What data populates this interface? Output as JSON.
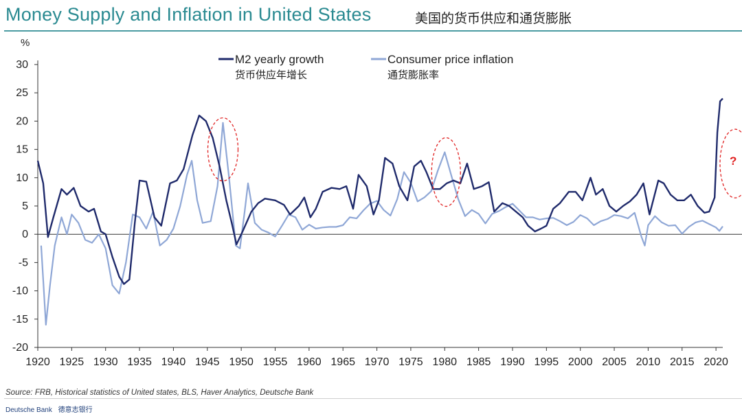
{
  "header": {
    "title": "Money Supply and Inflation in United States",
    "title_cn": "美国的货币供应和通货膨胀"
  },
  "footer": {
    "source": "Source: FRB, Historical statistics of United states,  BLS, Haver Analytics, Deutsche Bank",
    "brand": "Deutsche Bank",
    "brand_cn": "德意志银行"
  },
  "colors": {
    "title": "#2a8a91",
    "m2": "#1f2a6b",
    "cpi": "#8fa7d6",
    "highlight": "#e02020"
  },
  "annotation": {
    "text": "?"
  },
  "chart_data": {
    "type": "line",
    "ylabel": "%",
    "xlim": [
      1920,
      2021
    ],
    "ylim": [
      -20,
      30
    ],
    "yticks": [
      30,
      25,
      20,
      15,
      10,
      5,
      0,
      -5,
      -10,
      -15,
      -20
    ],
    "xticks": [
      1920,
      1925,
      1930,
      1935,
      1940,
      1945,
      1950,
      1955,
      1960,
      1965,
      1970,
      1975,
      1980,
      1985,
      1990,
      1995,
      2000,
      2005,
      2010,
      2015,
      2020
    ],
    "legend_position": "top-center",
    "series": [
      {
        "name": "M2 yearly growth",
        "name_cn": "货币供应年增长",
        "points": [
          [
            1920,
            13
          ],
          [
            1920.8,
            9
          ],
          [
            1921.5,
            -0.5
          ],
          [
            1922.3,
            3
          ],
          [
            1923.5,
            8
          ],
          [
            1924.3,
            7
          ],
          [
            1925.3,
            8.2
          ],
          [
            1926.3,
            5
          ],
          [
            1927.5,
            4
          ],
          [
            1928.3,
            4.5
          ],
          [
            1929.3,
            0.5
          ],
          [
            1930,
            0
          ],
          [
            1931,
            -4
          ],
          [
            1932,
            -7.5
          ],
          [
            1932.7,
            -8.8
          ],
          [
            1933.5,
            -8
          ],
          [
            1934.3,
            2
          ],
          [
            1935,
            9.5
          ],
          [
            1936,
            9.3
          ],
          [
            1937.2,
            3
          ],
          [
            1938.2,
            1.5
          ],
          [
            1939.5,
            9
          ],
          [
            1940.5,
            9.5
          ],
          [
            1941.5,
            11.5
          ],
          [
            1942.8,
            17.5
          ],
          [
            1943.8,
            21
          ],
          [
            1944.8,
            20
          ],
          [
            1945.8,
            17
          ],
          [
            1946.8,
            12
          ],
          [
            1947.8,
            6
          ],
          [
            1948.6,
            2
          ],
          [
            1949.3,
            -1.8
          ],
          [
            1950.2,
            0.5
          ],
          [
            1951.5,
            4
          ],
          [
            1952.5,
            5.5
          ],
          [
            1953.5,
            6.3
          ],
          [
            1955,
            6
          ],
          [
            1956.3,
            5.2
          ],
          [
            1957.2,
            3.5
          ],
          [
            1958.5,
            5
          ],
          [
            1959.3,
            6.5
          ],
          [
            1960.2,
            3
          ],
          [
            1961,
            4.5
          ],
          [
            1962,
            7.5
          ],
          [
            1963.3,
            8.2
          ],
          [
            1964.5,
            8
          ],
          [
            1965.5,
            8.5
          ],
          [
            1966.5,
            4.5
          ],
          [
            1967.3,
            10.5
          ],
          [
            1968.5,
            8.5
          ],
          [
            1969.5,
            3.5
          ],
          [
            1970.3,
            6
          ],
          [
            1971.2,
            13.5
          ],
          [
            1972.3,
            12.5
          ],
          [
            1973.3,
            8.5
          ],
          [
            1974.5,
            6
          ],
          [
            1975.5,
            12
          ],
          [
            1976.5,
            13
          ],
          [
            1977.3,
            11
          ],
          [
            1978.3,
            8
          ],
          [
            1979.3,
            8
          ],
          [
            1980.3,
            9
          ],
          [
            1981.3,
            9.5
          ],
          [
            1982.3,
            9
          ],
          [
            1983.3,
            12.5
          ],
          [
            1984.3,
            8
          ],
          [
            1985.5,
            8.5
          ],
          [
            1986.5,
            9.2
          ],
          [
            1987.3,
            4
          ],
          [
            1988.5,
            5.5
          ],
          [
            1989.5,
            5
          ],
          [
            1990.5,
            4
          ],
          [
            1991.5,
            3
          ],
          [
            1992.3,
            1.5
          ],
          [
            1993.3,
            0.5
          ],
          [
            1994.2,
            1
          ],
          [
            1995,
            1.5
          ],
          [
            1996,
            4.5
          ],
          [
            1997,
            5.5
          ],
          [
            1998.3,
            7.5
          ],
          [
            1999.3,
            7.5
          ],
          [
            2000.3,
            6
          ],
          [
            2001.5,
            10
          ],
          [
            2002.3,
            7
          ],
          [
            2003.3,
            8
          ],
          [
            2004.3,
            5
          ],
          [
            2005.3,
            4
          ],
          [
            2006.3,
            5
          ],
          [
            2007.3,
            5.8
          ],
          [
            2008.3,
            7
          ],
          [
            2009.3,
            9
          ],
          [
            2010.2,
            3.5
          ],
          [
            2011.5,
            9.5
          ],
          [
            2012.3,
            9
          ],
          [
            2013.3,
            7
          ],
          [
            2014.3,
            6
          ],
          [
            2015.3,
            6
          ],
          [
            2016.3,
            7
          ],
          [
            2017.3,
            5
          ],
          [
            2018.3,
            3.8
          ],
          [
            2019,
            4
          ],
          [
            2019.8,
            6.5
          ],
          [
            2020.2,
            18
          ],
          [
            2020.6,
            23.5
          ],
          [
            2021,
            24
          ]
        ]
      },
      {
        "name": "Consumer price inflation",
        "name_cn": "通货膨胀率",
        "points": [
          [
            1920.5,
            -2
          ],
          [
            1921.2,
            -16
          ],
          [
            1921.8,
            -9
          ],
          [
            1922.5,
            -2
          ],
          [
            1923.5,
            3
          ],
          [
            1924.3,
            0
          ],
          [
            1925,
            3.5
          ],
          [
            1926,
            2
          ],
          [
            1927,
            -1
          ],
          [
            1928,
            -1.5
          ],
          [
            1929,
            0
          ],
          [
            1930,
            -2.5
          ],
          [
            1931,
            -9
          ],
          [
            1932,
            -10.5
          ],
          [
            1933,
            -5
          ],
          [
            1934,
            3.5
          ],
          [
            1935,
            3
          ],
          [
            1936,
            1
          ],
          [
            1937,
            4
          ],
          [
            1938,
            -2
          ],
          [
            1939,
            -1
          ],
          [
            1940,
            1
          ],
          [
            1941,
            5
          ],
          [
            1942,
            10.5
          ],
          [
            1942.7,
            13
          ],
          [
            1943.5,
            6
          ],
          [
            1944.3,
            2
          ],
          [
            1945.5,
            2.3
          ],
          [
            1946.5,
            8.5
          ],
          [
            1947.3,
            19.7
          ],
          [
            1948.2,
            10
          ],
          [
            1949.2,
            -2
          ],
          [
            1949.8,
            -2.5
          ],
          [
            1950.5,
            4
          ],
          [
            1951,
            9
          ],
          [
            1952,
            2
          ],
          [
            1953,
            0.8
          ],
          [
            1954,
            0.3
          ],
          [
            1955,
            -0.4
          ],
          [
            1956,
            1.5
          ],
          [
            1957,
            3.5
          ],
          [
            1958,
            3
          ],
          [
            1959,
            0.8
          ],
          [
            1960,
            1.7
          ],
          [
            1961,
            1
          ],
          [
            1962,
            1.2
          ],
          [
            1963,
            1.3
          ],
          [
            1964,
            1.3
          ],
          [
            1965,
            1.6
          ],
          [
            1966,
            3
          ],
          [
            1967,
            2.8
          ],
          [
            1968,
            4.2
          ],
          [
            1969,
            5.4
          ],
          [
            1970,
            5.9
          ],
          [
            1971,
            4.3
          ],
          [
            1972,
            3.3
          ],
          [
            1973,
            6.2
          ],
          [
            1974,
            11
          ],
          [
            1975,
            9.1
          ],
          [
            1976,
            5.8
          ],
          [
            1977,
            6.5
          ],
          [
            1978,
            7.6
          ],
          [
            1979,
            11.3
          ],
          [
            1980,
            14.5
          ],
          [
            1981,
            10.3
          ],
          [
            1982,
            6.2
          ],
          [
            1983,
            3.2
          ],
          [
            1984,
            4.3
          ],
          [
            1985,
            3.6
          ],
          [
            1986,
            1.9
          ],
          [
            1987,
            3.6
          ],
          [
            1988,
            4.1
          ],
          [
            1989,
            4.8
          ],
          [
            1990,
            5.4
          ],
          [
            1991,
            4.2
          ],
          [
            1992,
            3
          ],
          [
            1993,
            3
          ],
          [
            1994,
            2.6
          ],
          [
            1995,
            2.8
          ],
          [
            1996,
            2.9
          ],
          [
            1997,
            2.3
          ],
          [
            1998,
            1.6
          ],
          [
            1999,
            2.2
          ],
          [
            2000,
            3.4
          ],
          [
            2001,
            2.8
          ],
          [
            2002,
            1.6
          ],
          [
            2003,
            2.3
          ],
          [
            2004,
            2.7
          ],
          [
            2005,
            3.4
          ],
          [
            2006,
            3.2
          ],
          [
            2007,
            2.8
          ],
          [
            2008,
            3.8
          ],
          [
            2009,
            -0.4
          ],
          [
            2009.5,
            -2
          ],
          [
            2010,
            1.6
          ],
          [
            2011,
            3.2
          ],
          [
            2012,
            2.1
          ],
          [
            2013,
            1.5
          ],
          [
            2014,
            1.6
          ],
          [
            2015,
            0.1
          ],
          [
            2016,
            1.3
          ],
          [
            2017,
            2.1
          ],
          [
            2018,
            2.4
          ],
          [
            2019,
            1.8
          ],
          [
            2020,
            1.2
          ],
          [
            2020.5,
            0.6
          ],
          [
            2021,
            1.4
          ]
        ]
      }
    ]
  }
}
